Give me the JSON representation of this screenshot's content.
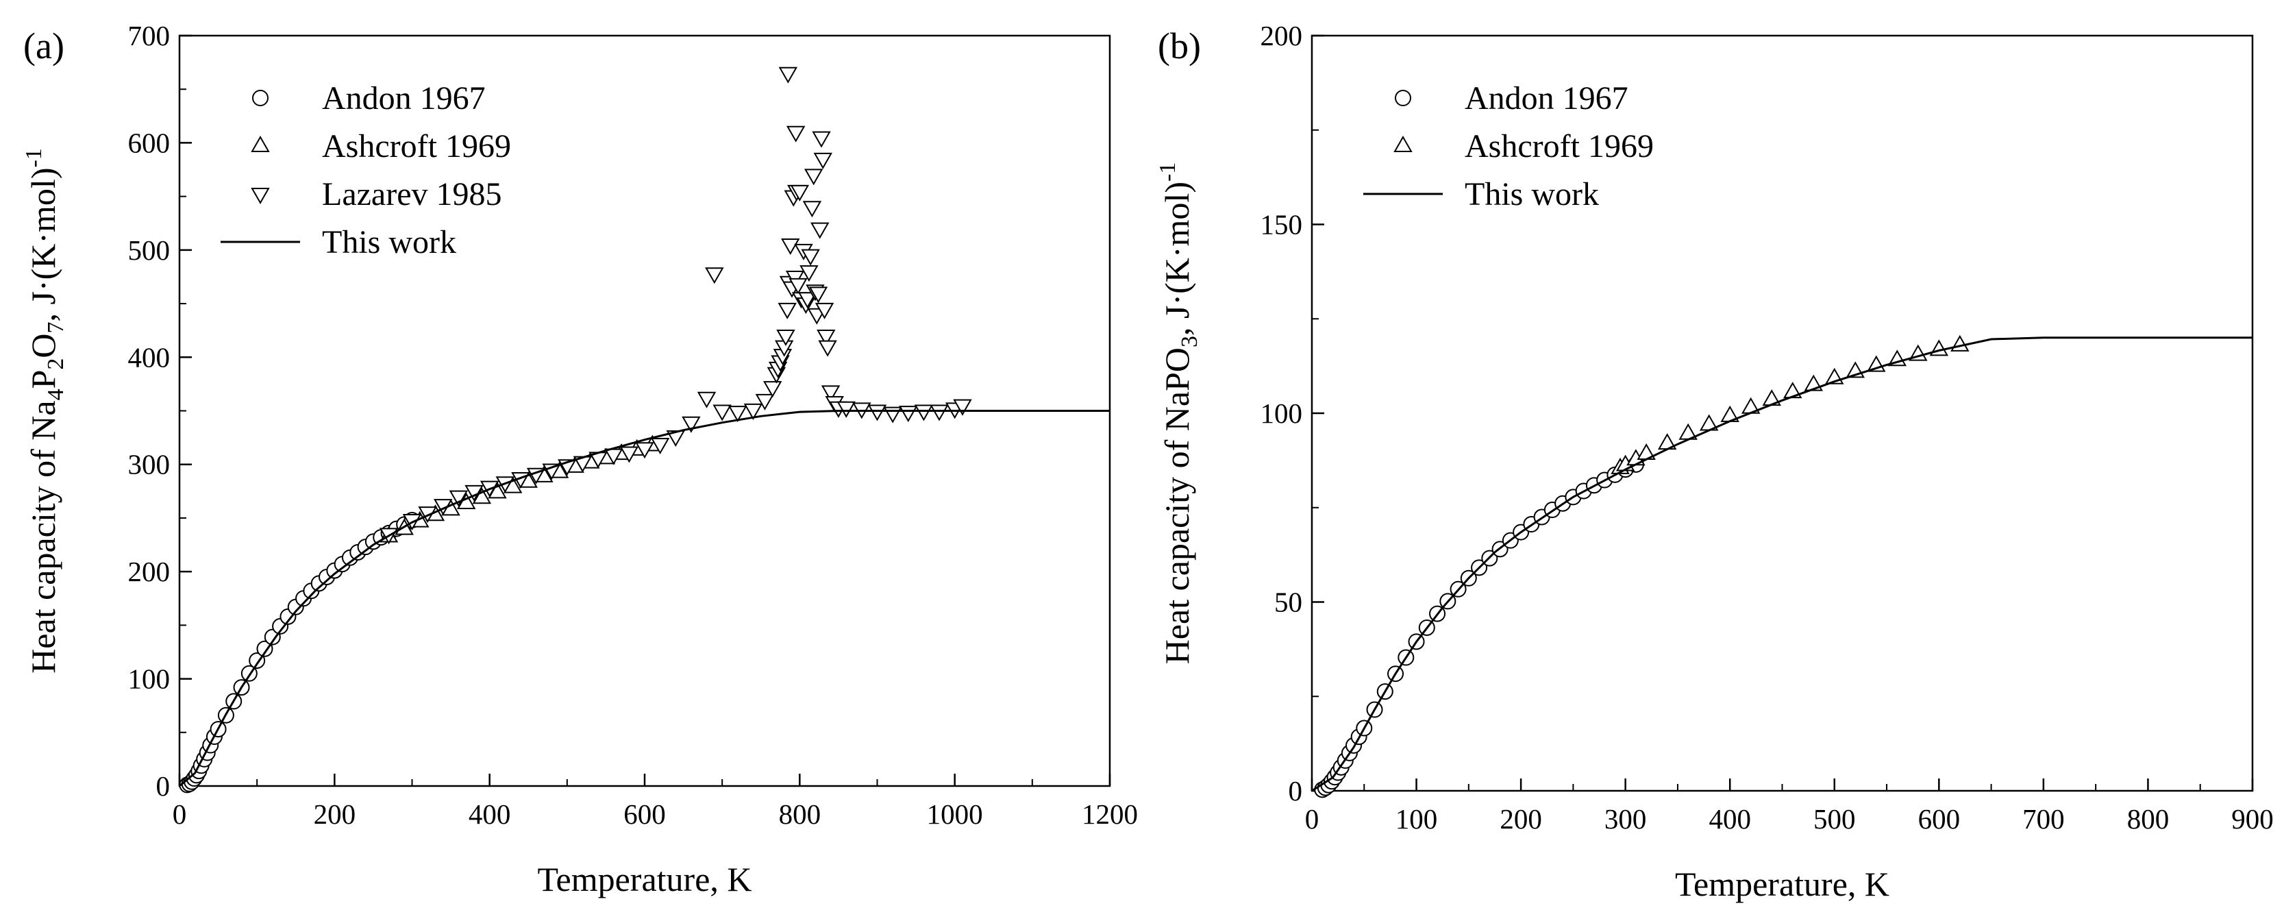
{
  "chart_data": [
    {
      "type": "scatter",
      "panel_label": "(a)",
      "xlabel": "Temperature, K",
      "ylabel": {
        "prefix": "Heat capacity of Na",
        "sub1": "4",
        "mid1": "P",
        "sub2": "2",
        "mid2": "O",
        "sub3": "7",
        "suffix": ", J·(K·mol)",
        "sup": "-1"
      },
      "xlim": [
        0,
        1200
      ],
      "ylim": [
        0,
        700
      ],
      "xticks": [
        0,
        200,
        400,
        600,
        800,
        1000,
        1200
      ],
      "yticks": [
        0,
        100,
        200,
        300,
        400,
        500,
        600,
        700
      ],
      "legend_position": "top-left",
      "series": [
        {
          "name": "Andon 1967",
          "marker": "circle",
          "x": [
            10,
            13,
            16,
            19,
            22,
            25,
            28,
            32,
            36,
            40,
            45,
            50,
            60,
            70,
            80,
            90,
            100,
            110,
            120,
            130,
            140,
            150,
            160,
            170,
            180,
            190,
            200,
            210,
            220,
            230,
            240,
            250,
            260,
            270,
            280,
            290,
            300
          ],
          "y": [
            1,
            2,
            4,
            7,
            10,
            14,
            19,
            25,
            31,
            38,
            46,
            53,
            66,
            79,
            92,
            105,
            117,
            128,
            139,
            149,
            158,
            167,
            175,
            182,
            189,
            195,
            201,
            207,
            213,
            218,
            223,
            228,
            232,
            236,
            240,
            244,
            248
          ]
        },
        {
          "name": "Ashcroft 1969",
          "marker": "triangle-up",
          "x": [
            270,
            290,
            310,
            330,
            350,
            370,
            390,
            410,
            430,
            450,
            470,
            490,
            510,
            530,
            550,
            570,
            590,
            610
          ],
          "y": [
            233,
            240,
            247,
            253,
            258,
            264,
            269,
            274,
            279,
            284,
            289,
            293,
            298,
            302,
            306,
            310,
            314,
            318
          ]
        },
        {
          "name": "Lazarev 1985",
          "marker": "triangle-down",
          "x": [
            270,
            300,
            320,
            340,
            360,
            380,
            400,
            420,
            440,
            460,
            480,
            500,
            520,
            540,
            560,
            580,
            600,
            620,
            640,
            660,
            680,
            690,
            700,
            720,
            740,
            755,
            765,
            770,
            772,
            775,
            778,
            780,
            782,
            784,
            786,
            788,
            790,
            792,
            794,
            796,
            798,
            800,
            802,
            805,
            808,
            810,
            812,
            814,
            816,
            818,
            820,
            822,
            824,
            826,
            828,
            830,
            832,
            834,
            836,
            840,
            845,
            850,
            860,
            880,
            900,
            920,
            940,
            960,
            980,
            1000,
            1010,
            785,
            795
          ],
          "y": [
            235,
            248,
            255,
            262,
            270,
            275,
            279,
            283,
            287,
            291,
            295,
            299,
            302,
            306,
            309,
            311,
            315,
            319,
            326,
            339,
            362,
            478,
            350,
            349,
            351,
            360,
            372,
            385,
            390,
            396,
            402,
            410,
            420,
            445,
            470,
            505,
            465,
            550,
            475,
            555,
            468,
            555,
            455,
            500,
            450,
            455,
            480,
            495,
            540,
            570,
            462,
            440,
            460,
            520,
            605,
            585,
            445,
            420,
            410,
            368,
            358,
            353,
            353,
            352,
            350,
            348,
            349,
            350,
            350,
            352,
            355,
            665,
            610
          ]
        },
        {
          "name": "This work",
          "marker": "line",
          "x": [
            0,
            20,
            40,
            60,
            80,
            100,
            125,
            150,
            175,
            200,
            250,
            300,
            350,
            400,
            450,
            500,
            550,
            600,
            650,
            700,
            750,
            800,
            850,
            900,
            1000,
            1100,
            1200
          ],
          "y": [
            0,
            12,
            40,
            67,
            92,
            114,
            140,
            163,
            182,
            198,
            225,
            246,
            262,
            277,
            290,
            302,
            313,
            323,
            332,
            339,
            345,
            349,
            350,
            350,
            350,
            350,
            350
          ]
        }
      ]
    },
    {
      "type": "scatter",
      "panel_label": "(b)",
      "xlabel": "Temperature, K",
      "ylabel": {
        "prefix": "Heat capacity of NaPO",
        "sub1": "3",
        "suffix": ", J·(K·mol)",
        "sup": "-1"
      },
      "xlim": [
        0,
        900
      ],
      "ylim": [
        0,
        200
      ],
      "xticks": [
        0,
        100,
        200,
        300,
        400,
        500,
        600,
        700,
        800,
        900
      ],
      "yticks": [
        0,
        50,
        100,
        150,
        200
      ],
      "legend_position": "top-left",
      "series": [
        {
          "name": "Andon 1967",
          "marker": "circle",
          "x": [
            10,
            13,
            16,
            19,
            22,
            25,
            28,
            32,
            36,
            40,
            45,
            50,
            60,
            70,
            80,
            90,
            100,
            110,
            120,
            130,
            140,
            150,
            160,
            170,
            180,
            190,
            200,
            210,
            220,
            230,
            240,
            250,
            260,
            270,
            280,
            290,
            300,
            310
          ],
          "y": [
            0.3,
            0.8,
            1.5,
            2.5,
            3.6,
            4.8,
            6.2,
            8,
            10,
            12,
            14.3,
            16.6,
            21.5,
            26.3,
            31,
            35.3,
            39.5,
            43.2,
            46.9,
            50.2,
            53.4,
            56.3,
            59.1,
            61.6,
            64,
            66.3,
            68.5,
            70.6,
            72.5,
            74.4,
            76.1,
            77.8,
            79.4,
            80.9,
            82.3,
            83.7,
            85.1,
            86.4
          ]
        },
        {
          "name": "Ashcroft 1969",
          "marker": "triangle-up",
          "x": [
            295,
            300,
            310,
            320,
            340,
            360,
            380,
            400,
            420,
            440,
            460,
            480,
            500,
            520,
            540,
            560,
            580,
            600,
            620
          ],
          "y": [
            85.5,
            86.3,
            87.8,
            89.3,
            92,
            94.6,
            97,
            99.3,
            101.5,
            103.6,
            105.6,
            107.5,
            109.3,
            111,
            112.6,
            114.1,
            115.5,
            116.8,
            118
          ]
        },
        {
          "name": "This work",
          "marker": "line",
          "x": [
            0,
            20,
            40,
            60,
            80,
            100,
            125,
            150,
            175,
            200,
            250,
            300,
            350,
            400,
            450,
            500,
            550,
            600,
            650,
            700,
            750,
            800,
            850,
            900
          ],
          "y": [
            0,
            3.5,
            11.5,
            21.5,
            31,
            39.5,
            48.5,
            56.3,
            63.2,
            68.5,
            77.8,
            85.1,
            91.8,
            97.9,
            103.4,
            108.4,
            112.8,
            116.6,
            119.6,
            120,
            120,
            120,
            120,
            120
          ]
        }
      ]
    }
  ]
}
